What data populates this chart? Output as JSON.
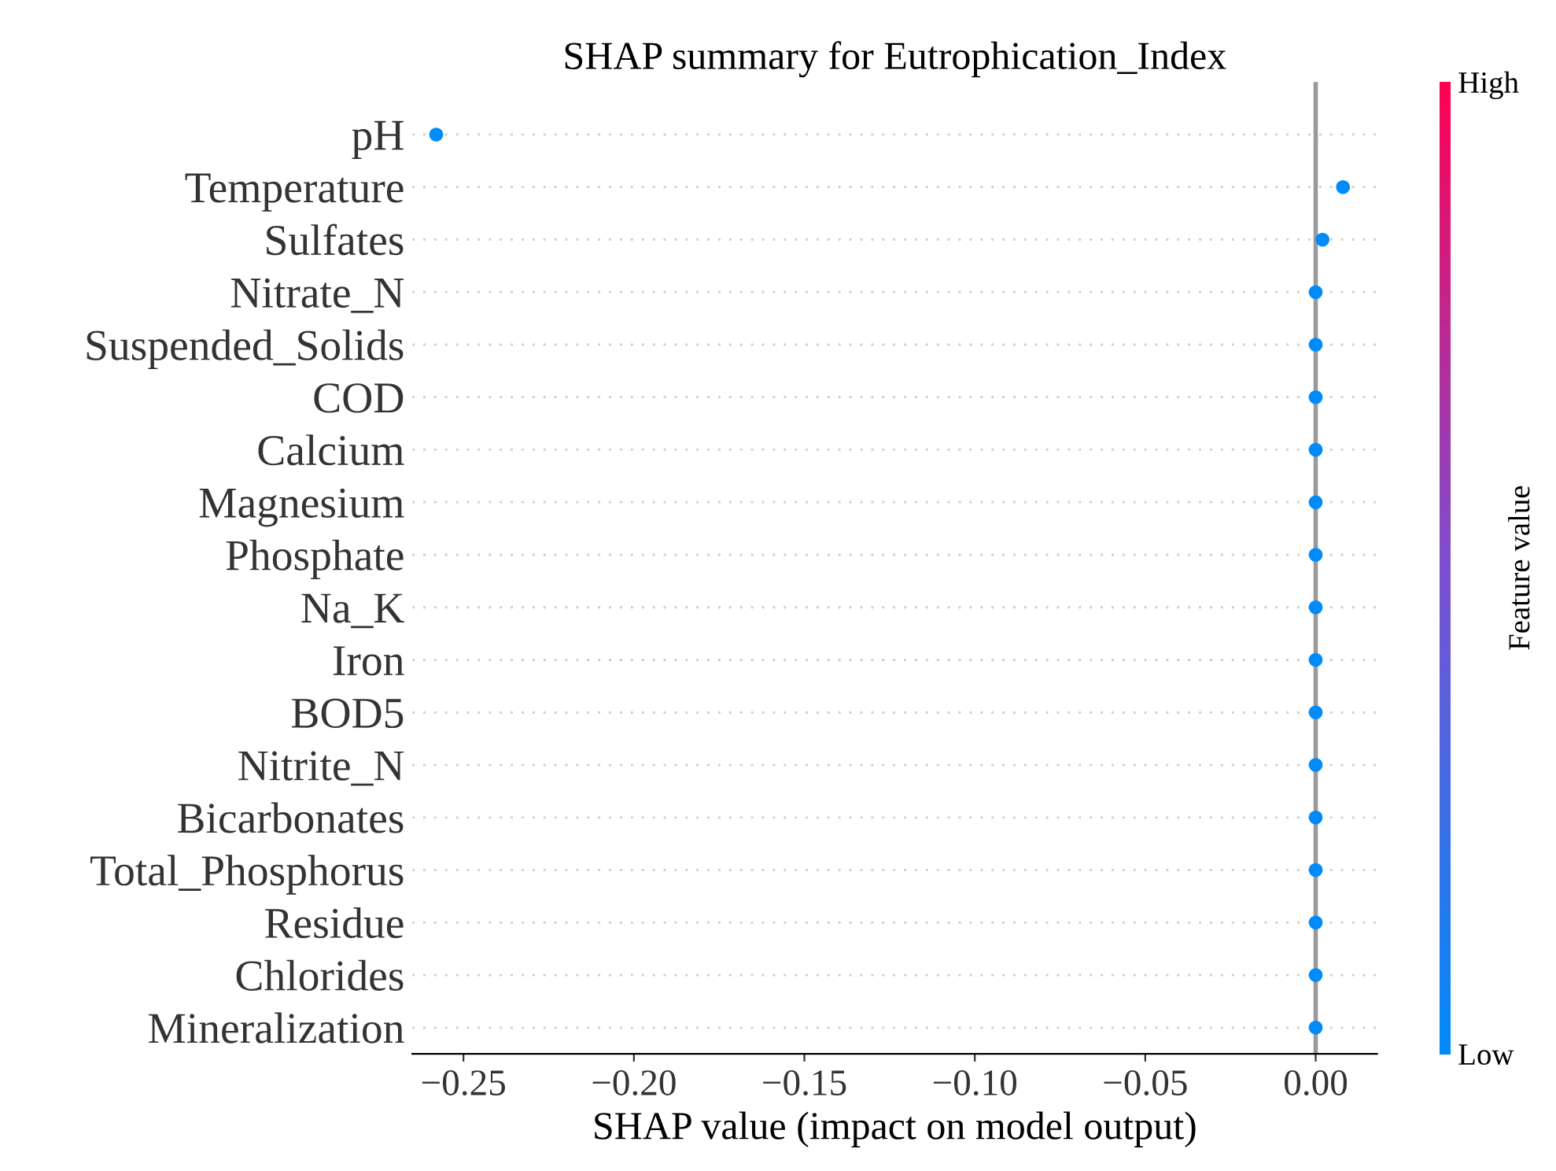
{
  "chart_data": {
    "type": "scatter",
    "title": "SHAP summary for Eutrophication_Index",
    "xlabel": "SHAP value (impact on model output)",
    "clabel": "Feature value",
    "categories": [
      "pH",
      "Temperature",
      "Sulfates",
      "Nitrate_N",
      "Suspended_Solids",
      "COD",
      "Calcium",
      "Magnesium",
      "Phosphate",
      "Na_K",
      "Iron",
      "BOD5",
      "Nitrite_N",
      "Bicarbonates",
      "Total_Phosphorus",
      "Residue",
      "Chlorides",
      "Mineralization"
    ],
    "values": [
      -0.258,
      0.008,
      0.002,
      0.0,
      0.0,
      0.0,
      0.0,
      0.0,
      0.0,
      0.0,
      0.0,
      0.0,
      0.0,
      0.0,
      0.0,
      0.0,
      0.0,
      0.0
    ],
    "cvalues": [
      0,
      0,
      0,
      0,
      0,
      0,
      0,
      0,
      0,
      0,
      0,
      0,
      0,
      0,
      0,
      0,
      0,
      0
    ],
    "clim": [
      0,
      1
    ],
    "cticks": [
      {
        "value": 0,
        "label": "Low"
      },
      {
        "value": 1,
        "label": "High"
      }
    ],
    "orientation": "horizontal",
    "xlim": [
      -0.265,
      0.018
    ],
    "xticks": [
      {
        "value": -0.25,
        "label": "−0.25"
      },
      {
        "value": -0.2,
        "label": "−0.20"
      },
      {
        "value": -0.15,
        "label": "−0.15"
      },
      {
        "value": -0.1,
        "label": "−0.10"
      },
      {
        "value": -0.05,
        "label": "−0.05"
      },
      {
        "value": 0,
        "label": "0.00"
      }
    ],
    "ref_lines": [
      {
        "axis": "x",
        "value": 0,
        "color": "#999999"
      }
    ],
    "grid": "y",
    "marker": "circle",
    "legend": false
  }
}
